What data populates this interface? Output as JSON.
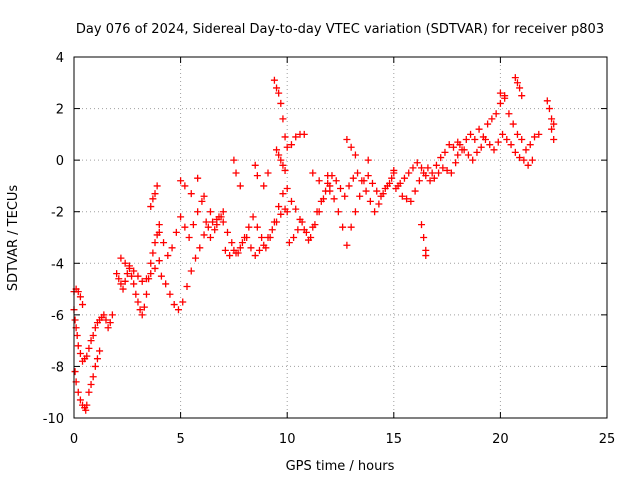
{
  "chart_data": {
    "type": "scatter",
    "title": "Day 076 of 2024, Sidereal Day-to-day VTEC variation (SDTVAR) for receiver p803",
    "xlabel": "GPS time / hours",
    "ylabel": "SDTVAR / TECUs",
    "xlim": [
      0,
      25
    ],
    "ylim": [
      -10,
      4
    ],
    "xticks": [
      0,
      5,
      10,
      15,
      20,
      25
    ],
    "yticks": [
      -10,
      -8,
      -6,
      -4,
      -2,
      0,
      2,
      4
    ],
    "xtick_labels": [
      "0",
      "5",
      "10",
      "15",
      "20",
      "25"
    ],
    "ytick_labels": [
      "-10",
      "-8",
      "-6",
      "-4",
      "-2",
      "0",
      "2",
      "4"
    ],
    "grid": true,
    "marker": "+",
    "marker_color": "#ff0000",
    "series": [
      {
        "name": "SDTVAR",
        "x": [
          0.0,
          0.05,
          0.1,
          0.15,
          0.2,
          0.3,
          0.4,
          0.5,
          0.6,
          0.7,
          0.8,
          0.9,
          1.0,
          1.1,
          1.2,
          1.3,
          1.4,
          1.5,
          1.6,
          1.7,
          1.8,
          0.05,
          0.1,
          0.2,
          0.3,
          0.4,
          0.5,
          0.55,
          0.6,
          0.7,
          0.8,
          0.9,
          1.0,
          1.1,
          1.2,
          0.0,
          0.1,
          0.2,
          0.3,
          0.4,
          2.0,
          2.1,
          2.2,
          2.3,
          2.4,
          2.5,
          2.6,
          2.7,
          2.8,
          2.9,
          3.0,
          3.1,
          3.2,
          3.3,
          3.4,
          3.5,
          3.6,
          3.7,
          3.8,
          3.9,
          4.0,
          2.2,
          2.4,
          2.6,
          2.8,
          3.0,
          3.2,
          3.4,
          3.6,
          3.8,
          4.0,
          3.6,
          3.7,
          3.8,
          3.9,
          4.0,
          4.2,
          4.4,
          4.6,
          4.8,
          5.0,
          5.2,
          5.4,
          5.6,
          5.8,
          6.0,
          6.2,
          6.4,
          6.6,
          6.8,
          7.0,
          4.1,
          4.3,
          4.5,
          4.7,
          4.9,
          5.1,
          5.3,
          5.5,
          5.7,
          5.9,
          6.1,
          6.3,
          6.5,
          6.7,
          6.9,
          5.0,
          5.2,
          5.5,
          5.8,
          6.1,
          6.4,
          6.7,
          7.0,
          7.2,
          7.4,
          7.6,
          7.8,
          8.0,
          8.2,
          8.4,
          8.6,
          8.8,
          9.0,
          9.2,
          9.4,
          9.6,
          9.8,
          10.0,
          7.1,
          7.3,
          7.5,
          7.7,
          7.9,
          8.1,
          8.3,
          8.5,
          8.7,
          8.9,
          9.1,
          9.3,
          9.5,
          9.7,
          9.9,
          7.5,
          7.6,
          7.8,
          8.5,
          8.6,
          8.9,
          9.1,
          9.4,
          9.5,
          9.6,
          9.7,
          9.8,
          9.9,
          10.0,
          10.2,
          10.4,
          10.6,
          10.8,
          9.5,
          9.6,
          9.7,
          9.8,
          9.9,
          10.0,
          10.2,
          10.4,
          10.6,
          10.8,
          11.0,
          11.2,
          11.4,
          11.6,
          11.8,
          12.0,
          10.1,
          10.3,
          10.5,
          10.7,
          10.9,
          11.1,
          11.3,
          11.5,
          11.7,
          11.9,
          11.2,
          11.5,
          11.9,
          12.0,
          12.2,
          12.4,
          12.6,
          12.8,
          13.0,
          13.2,
          13.4,
          13.6,
          13.8,
          14.0,
          14.2,
          14.4,
          14.6,
          14.8,
          15.0,
          12.1,
          12.3,
          12.5,
          12.7,
          12.9,
          13.1,
          13.3,
          13.5,
          13.7,
          13.9,
          14.1,
          14.3,
          14.5,
          14.7,
          14.9,
          12.8,
          13.0,
          13.2,
          13.8,
          15.0,
          15.2,
          15.4,
          15.6,
          15.8,
          16.0,
          16.2,
          16.4,
          16.6,
          16.8,
          17.0,
          17.2,
          17.4,
          17.6,
          17.8,
          18.0,
          15.1,
          15.3,
          15.5,
          15.7,
          15.9,
          16.1,
          16.3,
          16.5,
          16.7,
          16.9,
          17.1,
          17.3,
          17.5,
          17.7,
          17.9,
          16.3,
          16.4,
          16.5,
          16.5,
          18.0,
          18.2,
          18.4,
          18.6,
          18.8,
          19.0,
          19.2,
          19.4,
          19.6,
          19.8,
          20.0,
          20.2,
          20.4,
          20.6,
          20.8,
          21.0,
          21.2,
          21.4,
          21.6,
          21.8,
          18.1,
          18.3,
          18.5,
          18.7,
          18.9,
          19.1,
          19.3,
          19.5,
          19.7,
          19.9,
          20.1,
          20.3,
          20.5,
          20.7,
          20.9,
          21.1,
          21.3,
          21.5,
          20.0,
          20.2,
          20.7,
          20.8,
          20.9,
          21.0,
          22.2,
          22.3,
          22.4,
          22.4,
          22.5,
          22.5
        ],
        "y": [
          -5.8,
          -6.2,
          -6.5,
          -6.8,
          -7.2,
          -7.5,
          -7.8,
          -7.7,
          -7.6,
          -7.3,
          -7.0,
          -6.8,
          -6.5,
          -6.3,
          -6.2,
          -6.1,
          -6.0,
          -6.2,
          -6.5,
          -6.3,
          -6.0,
          -8.2,
          -8.6,
          -9.0,
          -9.3,
          -9.5,
          -9.6,
          -9.7,
          -9.5,
          -9.0,
          -8.7,
          -8.4,
          -8.0,
          -7.7,
          -7.4,
          -5.1,
          -5.0,
          -5.1,
          -5.3,
          -5.6,
          -4.4,
          -4.6,
          -4.8,
          -5.0,
          -4.7,
          -4.4,
          -4.2,
          -4.5,
          -4.8,
          -5.2,
          -5.5,
          -5.8,
          -6.0,
          -5.7,
          -5.2,
          -4.6,
          -4.0,
          -3.6,
          -3.2,
          -2.9,
          -2.5,
          -3.8,
          -4.0,
          -4.1,
          -4.3,
          -4.5,
          -4.7,
          -4.6,
          -4.4,
          -4.2,
          -3.9,
          -1.8,
          -1.5,
          -1.3,
          -1.0,
          -2.8,
          -3.2,
          -3.7,
          -3.4,
          -2.8,
          -2.2,
          -2.6,
          -3.0,
          -2.5,
          -2.0,
          -1.6,
          -2.4,
          -3.0,
          -2.7,
          -2.2,
          -2.0,
          -4.5,
          -4.8,
          -5.2,
          -5.6,
          -5.8,
          -5.5,
          -4.9,
          -4.3,
          -3.8,
          -3.4,
          -2.9,
          -2.6,
          -2.4,
          -2.3,
          -2.2,
          -0.8,
          -1.0,
          -1.3,
          -0.7,
          -1.4,
          -2.0,
          -2.5,
          -2.4,
          -2.8,
          -3.2,
          -3.6,
          -3.4,
          -3.0,
          -2.6,
          -2.2,
          -2.6,
          -3.0,
          -3.4,
          -3.0,
          -2.4,
          -1.8,
          -1.3,
          -1.1,
          -3.5,
          -3.7,
          -3.5,
          -3.6,
          -3.2,
          -3.0,
          -3.4,
          -3.7,
          -3.5,
          -3.3,
          -3.0,
          -2.7,
          -2.4,
          -2.1,
          -1.9,
          0.0,
          -0.5,
          -1.0,
          -0.2,
          -0.6,
          -1.0,
          -0.5,
          3.1,
          2.8,
          2.6,
          2.2,
          1.6,
          0.9,
          0.5,
          0.6,
          0.9,
          1.0,
          1.0,
          0.4,
          0.2,
          0.0,
          -0.2,
          -0.4,
          -2.0,
          -1.6,
          -1.9,
          -2.3,
          -2.7,
          -3.1,
          -2.6,
          -2.0,
          -1.6,
          -1.2,
          -1.0,
          -3.2,
          -3.0,
          -2.7,
          -2.4,
          -2.8,
          -3.0,
          -2.5,
          -2.0,
          -1.5,
          -0.9,
          -0.5,
          -0.8,
          -0.6,
          -1.2,
          -1.5,
          -2.0,
          -2.6,
          -3.3,
          -2.6,
          -2.0,
          -1.4,
          -0.8,
          -0.6,
          -0.9,
          -1.2,
          -1.4,
          -1.1,
          -0.9,
          -0.4,
          -0.6,
          -0.8,
          -1.1,
          -1.4,
          -1.0,
          -0.7,
          -0.5,
          -0.8,
          -1.2,
          -1.6,
          -2.0,
          -1.7,
          -1.3,
          -1.0,
          -0.7,
          0.8,
          0.5,
          0.2,
          0.0,
          -0.5,
          -1.0,
          -1.4,
          -1.5,
          -1.6,
          -1.2,
          -0.8,
          -0.5,
          -0.3,
          -0.5,
          -0.2,
          0.1,
          0.3,
          0.6,
          0.5,
          0.7,
          -1.1,
          -0.9,
          -0.7,
          -0.5,
          -0.3,
          -0.1,
          -0.3,
          -0.6,
          -0.8,
          -0.7,
          -0.5,
          -0.3,
          -0.4,
          -0.5,
          -0.1,
          -2.5,
          -3.0,
          -3.5,
          -3.7,
          0.2,
          0.4,
          0.8,
          1.0,
          0.8,
          1.2,
          0.9,
          1.4,
          1.6,
          1.8,
          2.2,
          2.5,
          1.8,
          1.4,
          1.0,
          0.8,
          0.4,
          0.6,
          0.9,
          1.0,
          0.6,
          0.4,
          0.2,
          0.0,
          0.3,
          0.5,
          0.8,
          0.6,
          0.4,
          0.7,
          1.0,
          0.8,
          0.6,
          0.3,
          0.1,
          0.0,
          -0.2,
          0.0,
          2.6,
          2.4,
          3.2,
          3.0,
          2.8,
          2.5,
          2.3,
          2.0,
          1.6,
          1.2,
          1.4,
          0.8
        ]
      }
    ]
  }
}
